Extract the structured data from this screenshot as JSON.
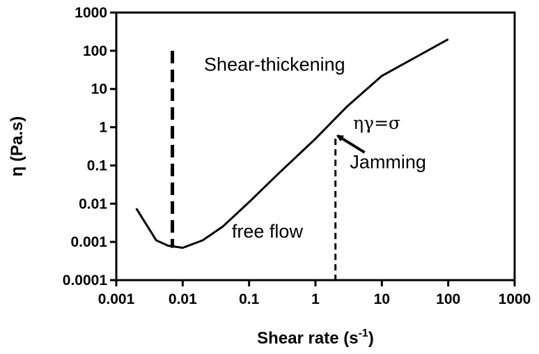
{
  "chart_data": {
    "type": "line",
    "title": "",
    "xlabel": {
      "main": "Shear rate (s",
      "superscript": "-1",
      "close": ")"
    },
    "ylabel": "η (Pa.s)",
    "xscale": "log",
    "yscale": "log",
    "xlim": [
      0.001,
      1000
    ],
    "ylim": [
      0.0001,
      1000
    ],
    "xticks": [
      0.001,
      0.01,
      0.1,
      1,
      10,
      100,
      1000
    ],
    "xtick_labels": [
      "0.001",
      "0.01",
      "0.1",
      "1",
      "10",
      "100",
      "1000"
    ],
    "yticks": [
      0.0001,
      0.001,
      0.01,
      0.1,
      1,
      10,
      100,
      1000
    ],
    "ytick_labels": [
      "0.0001",
      "0.001",
      "0.01",
      "0.1",
      "1",
      "10",
      "100",
      "1000"
    ],
    "grid": false,
    "legend": "none",
    "series": [
      {
        "x": [
          0.002,
          0.004,
          0.006,
          0.01,
          0.02,
          0.04,
          0.1,
          0.3,
          1,
          3,
          10,
          100
        ],
        "y": [
          0.0075,
          0.0011,
          0.0008,
          0.0007,
          0.0011,
          0.0025,
          0.011,
          0.07,
          0.5,
          3.5,
          22,
          200
        ]
      }
    ],
    "vlines": [
      {
        "x": 0.007,
        "y_from": 0.0007,
        "y_to": 100,
        "style": "long-dash"
      },
      {
        "x": 2,
        "y_from": 0.0001,
        "y_to": 0.5,
        "style": "short-dash"
      }
    ],
    "annotations": [
      {
        "text": "Shear-thickening",
        "x": 0.021,
        "y": 30
      },
      {
        "text": "ηγ=σ",
        "x": 3.7,
        "y": 0.9
      },
      {
        "text": "Jamming",
        "x": 3.3,
        "y": 0.085
      },
      {
        "text": "free flow",
        "x": 0.055,
        "y": 0.0013
      }
    ],
    "arrow": {
      "from_x": 5.5,
      "from_y": 0.22,
      "to_x": 2.15,
      "to_y": 0.6
    }
  }
}
